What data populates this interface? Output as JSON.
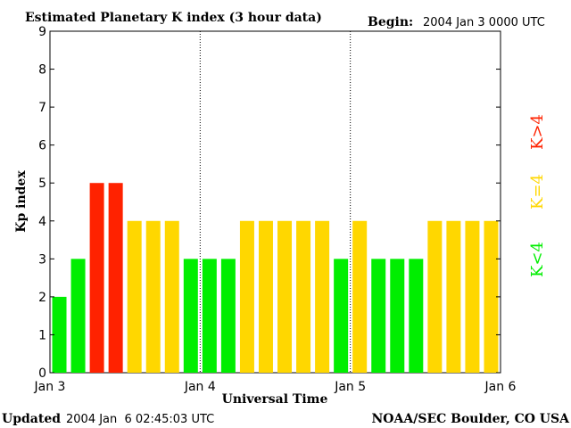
{
  "chart_data": {
    "type": "bar",
    "title": "Estimated Planetary K index (3 hour data)",
    "begin_label": "Begin:",
    "begin_value": "2004 Jan 3 0000 UTC",
    "xlabel": "Universal Time",
    "ylabel": "Kp index",
    "ylim": [
      0,
      9
    ],
    "yticks": [
      "0",
      "1",
      "2",
      "3",
      "4",
      "5",
      "6",
      "7",
      "8",
      "9"
    ],
    "xticks": [
      "Jan 3",
      "Jan 4",
      "Jan 5",
      "Jan 6"
    ],
    "hours_per_bar": 3,
    "values": [
      2,
      3,
      5,
      5,
      4,
      4,
      4,
      3,
      3,
      3,
      4,
      4,
      4,
      4,
      4,
      3,
      4,
      3,
      3,
      3,
      4,
      4,
      4,
      4
    ],
    "colors": {
      "low": "#00ee00",
      "mid": "#ffd700",
      "high": "#ff2200"
    },
    "legend": {
      "low": "K<4",
      "mid": "K=4",
      "high": "K>4"
    }
  },
  "footer": {
    "updated_label": "Updated",
    "updated_value": "2004 Jan  6 02:45:03 UTC",
    "source": "NOAA/SEC Boulder, CO USA"
  }
}
